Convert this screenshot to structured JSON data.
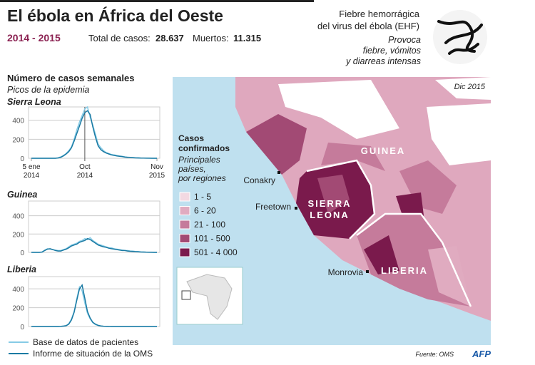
{
  "header": {
    "title": "El ébola en África del Oeste",
    "years": "2014 - 2015",
    "cases_label": "Total de casos:",
    "cases": "28.637",
    "deaths_label": "Muertos:",
    "deaths": "11.315"
  },
  "virus": {
    "name": "Fiebre hemorrágica\ndel virus del ébola (EHF)",
    "symptoms": "Provoca\nfiebre, vómitos\ny diarreas intensas"
  },
  "weekly_cases": {
    "title": "Número de casos semanales",
    "subtitle": "Picos de la epidemia"
  },
  "chart_data": [
    {
      "type": "line",
      "title": "Sierra Leona",
      "categories": [
        "5 ene\n2014",
        null,
        null,
        null,
        null,
        null,
        null,
        null,
        null,
        null,
        null,
        null,
        null,
        null,
        null,
        null,
        null,
        null,
        null,
        null,
        "Oct\n2014",
        null,
        null,
        null,
        null,
        null,
        null,
        null,
        null,
        null,
        null,
        null,
        null,
        null,
        null,
        null,
        null,
        null,
        null,
        null,
        null,
        null,
        null,
        null,
        null,
        null,
        null,
        "Nov\n2015"
      ],
      "ylim": [
        0,
        540
      ],
      "yticks": [
        0,
        200,
        400
      ],
      "grid": true,
      "series": [
        {
          "name": "Base de datos de pacientes",
          "color": "#86cbe6",
          "values": [
            0,
            0,
            0,
            0,
            0,
            0,
            0,
            0,
            0,
            0,
            5,
            15,
            30,
            50,
            80,
            120,
            200,
            300,
            380,
            450,
            520,
            540,
            430,
            350,
            250,
            150,
            110,
            80,
            60,
            50,
            40,
            35,
            30,
            25,
            20,
            15,
            12,
            10,
            8,
            5,
            5,
            3,
            2,
            2,
            1,
            1,
            0,
            0
          ]
        },
        {
          "name": "Informe de situación de la OMS",
          "color": "#1b7aa3",
          "values": [
            0,
            0,
            0,
            0,
            0,
            0,
            0,
            0,
            0,
            0,
            3,
            10,
            25,
            45,
            70,
            110,
            180,
            260,
            340,
            420,
            480,
            500,
            460,
            330,
            220,
            130,
            90,
            70,
            55,
            45,
            35,
            30,
            25,
            20,
            18,
            12,
            10,
            8,
            6,
            4,
            3,
            2,
            2,
            1,
            1,
            0,
            0,
            0
          ]
        }
      ]
    },
    {
      "type": "line",
      "title": "Guinea",
      "ylim": [
        0,
        560
      ],
      "yticks": [
        0,
        200,
        400
      ],
      "grid": true,
      "series": [
        {
          "color": "#86cbe6",
          "values": [
            0,
            0,
            0,
            0,
            5,
            25,
            40,
            35,
            30,
            25,
            20,
            20,
            30,
            40,
            60,
            80,
            90,
            100,
            120,
            130,
            150,
            140,
            160,
            130,
            110,
            90,
            80,
            70,
            60,
            50,
            50,
            40,
            35,
            30,
            25,
            20,
            20,
            15,
            15,
            10,
            10,
            5,
            5,
            3,
            2,
            1,
            0,
            0
          ]
        },
        {
          "color": "#1b7aa3",
          "values": [
            0,
            0,
            0,
            0,
            3,
            20,
            35,
            40,
            30,
            20,
            15,
            15,
            25,
            35,
            50,
            70,
            80,
            90,
            110,
            120,
            130,
            150,
            140,
            120,
            100,
            80,
            70,
            60,
            55,
            45,
            40,
            35,
            30,
            25,
            20,
            20,
            15,
            12,
            10,
            8,
            6,
            4,
            3,
            2,
            1,
            1,
            0,
            0
          ]
        }
      ]
    },
    {
      "type": "line",
      "title": "Liberia",
      "ylim": [
        0,
        530
      ],
      "yticks": [
        0,
        200,
        400
      ],
      "grid": true,
      "series": [
        {
          "color": "#86cbe6",
          "values": [
            0,
            0,
            0,
            0,
            0,
            0,
            0,
            0,
            0,
            0,
            0,
            2,
            5,
            10,
            30,
            80,
            160,
            300,
            420,
            380,
            250,
            140,
            80,
            40,
            20,
            10,
            5,
            2,
            1,
            1,
            0,
            0,
            0,
            0,
            0,
            0,
            0,
            0,
            0,
            0,
            0,
            0,
            0,
            0,
            0,
            0,
            0,
            0
          ]
        },
        {
          "color": "#1b7aa3",
          "values": [
            0,
            0,
            0,
            0,
            0,
            0,
            0,
            0,
            0,
            0,
            0,
            1,
            4,
            8,
            25,
            70,
            150,
            280,
            400,
            440,
            300,
            160,
            90,
            45,
            25,
            12,
            6,
            3,
            2,
            1,
            0,
            0,
            0,
            0,
            0,
            0,
            0,
            0,
            0,
            0,
            0,
            0,
            0,
            0,
            0,
            0,
            0,
            0
          ]
        }
      ]
    }
  ],
  "map": {
    "date": "Dic 2015",
    "legend_title": "Casos\nconfirmados",
    "legend_subtitle": "Principales\npaíses,\npor regiones",
    "legend": [
      {
        "label": "1 - 5",
        "color": "#f2d9e2"
      },
      {
        "label": "6 - 20",
        "color": "#e0abc0"
      },
      {
        "label": "21 - 100",
        "color": "#c57b9b"
      },
      {
        "label": "101 - 500",
        "color": "#a24a74"
      },
      {
        "label": "501 - 4 000",
        "color": "#7a1a4c"
      }
    ],
    "countries": [
      "GUINEA",
      "SIERRA\nLEONA",
      "LIBERIA"
    ],
    "cities": [
      "Conakry",
      "Freetown",
      "Monrovia"
    ],
    "source": "Fuente: OMS",
    "agency": "AFP"
  }
}
